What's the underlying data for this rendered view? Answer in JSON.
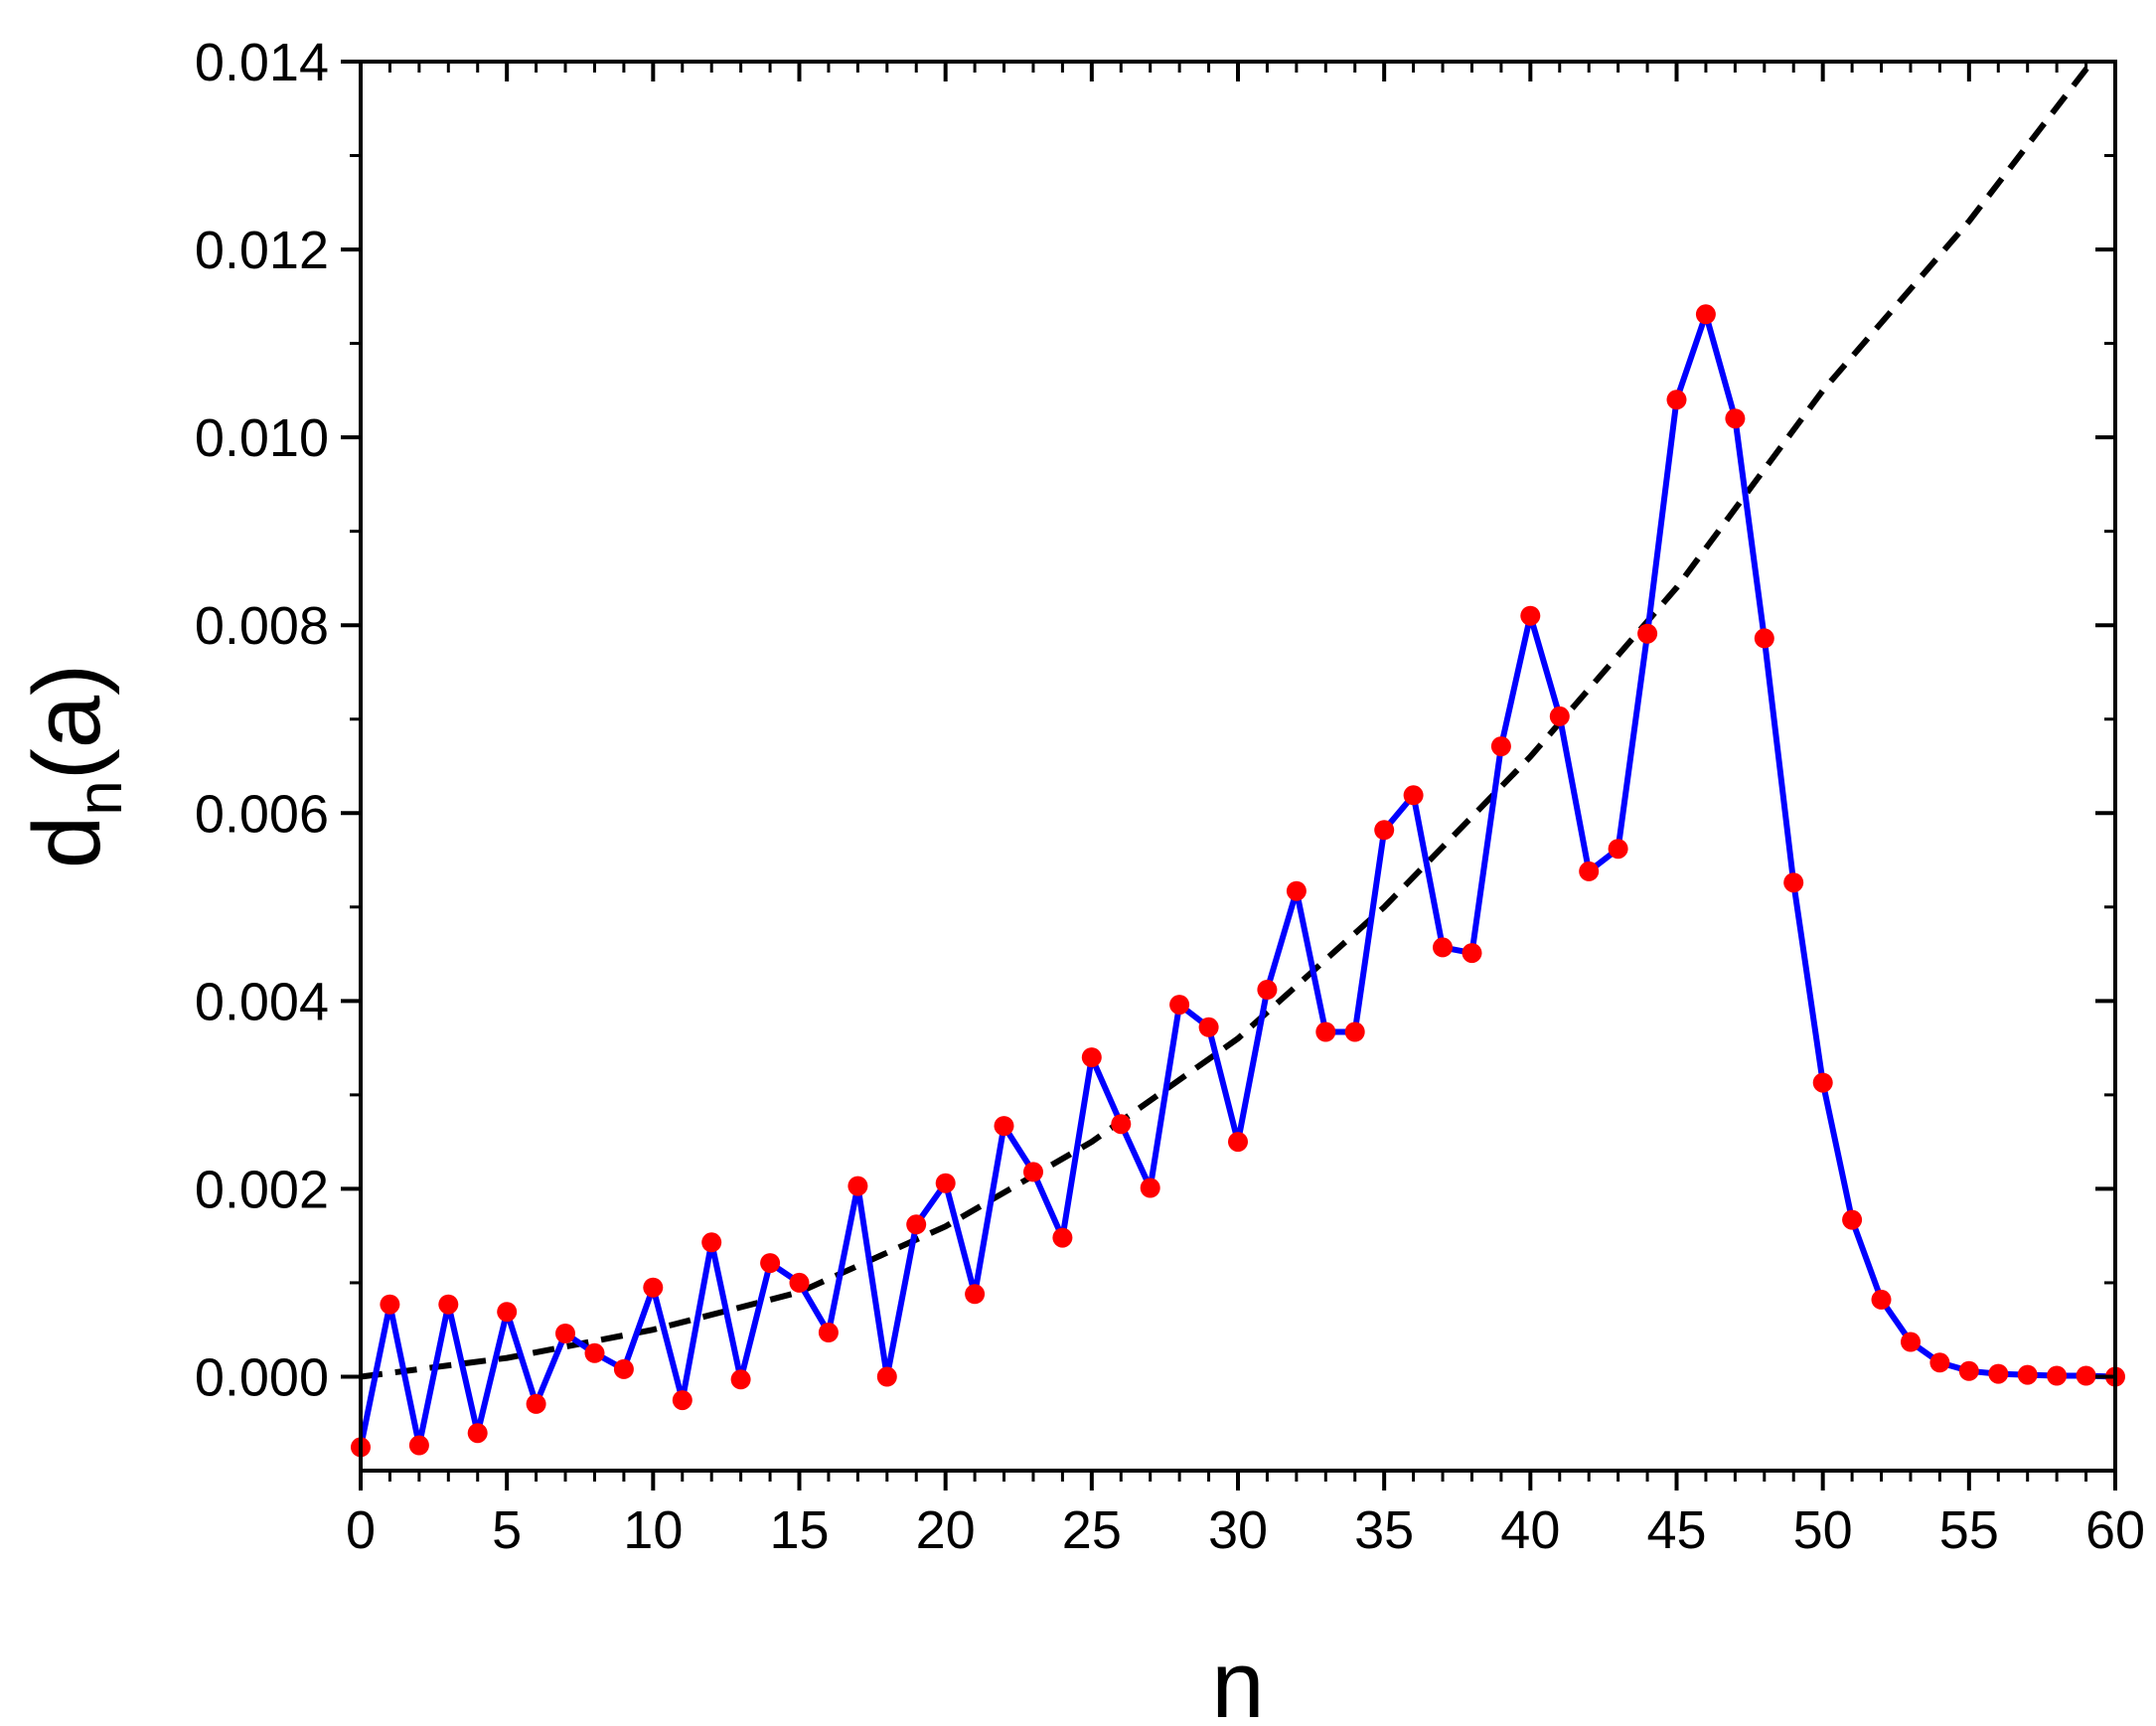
{
  "chart_data": {
    "type": "line",
    "xlabel": "n",
    "ylabel": {
      "base": "d",
      "subscript": "n",
      "suffix": "(a)"
    },
    "xlim": [
      0,
      60
    ],
    "ylim": [
      -0.001,
      0.014
    ],
    "x_ticks": [
      "0",
      "5",
      "10",
      "15",
      "20",
      "25",
      "30",
      "35",
      "40",
      "45",
      "50",
      "55",
      "60"
    ],
    "y_ticks": [
      "0.000",
      "0.002",
      "0.004",
      "0.006",
      "0.008",
      "0.010",
      "0.012",
      "0.014"
    ],
    "grid": false,
    "legend": "none",
    "series": [
      {
        "line_color": "#0000ff",
        "marker_color": "#ff0000",
        "marker": "circle",
        "line_style": "solid",
        "x": [
          0,
          1,
          2,
          3,
          4,
          5,
          6,
          7,
          8,
          9,
          10,
          11,
          12,
          13,
          14,
          15,
          16,
          17,
          18,
          19,
          20,
          21,
          22,
          23,
          24,
          25,
          26,
          27,
          28,
          29,
          30,
          31,
          32,
          33,
          34,
          35,
          36,
          37,
          38,
          39,
          40,
          41,
          42,
          43,
          44,
          45,
          46,
          47,
          48,
          49,
          50,
          51,
          52,
          53,
          54,
          55,
          56,
          57,
          58,
          59,
          60
        ],
        "values": [
          -0.00075,
          0.00077,
          -0.00073,
          0.00077,
          -0.0006,
          0.00069,
          -0.00029,
          0.00046,
          0.00025,
          8e-05,
          0.00095,
          -0.00025,
          0.00143,
          -3e-05,
          0.00121,
          0.001,
          0.00047,
          0.00203,
          0.0,
          0.00162,
          0.00206,
          0.00088,
          0.00267,
          0.00218,
          0.00148,
          0.0034,
          0.00269,
          0.00201,
          0.00396,
          0.00372,
          0.0025,
          0.00412,
          0.00517,
          0.00367,
          0.00367,
          0.00582,
          0.00619,
          0.00457,
          0.00451,
          0.00671,
          0.0081,
          0.00703,
          0.00538,
          0.00562,
          0.00791,
          0.0104,
          0.01131,
          0.0102,
          0.00786,
          0.00526,
          0.00313,
          0.00167,
          0.00082,
          0.00037,
          0.00015,
          6e-05,
          3e-05,
          2e-05,
          1e-05,
          1e-05,
          0.0
        ]
      },
      {
        "line_color": "#000000",
        "line_style": "dashed",
        "x": [
          0,
          5,
          10,
          15,
          20,
          25,
          30,
          35,
          40,
          45,
          50,
          55,
          59.2
        ],
        "values": [
          0.0,
          0.0002,
          0.0005,
          0.0009,
          0.0016,
          0.0025,
          0.0036,
          0.005,
          0.0066,
          0.0084,
          0.0105,
          0.0123,
          0.014
        ]
      }
    ]
  }
}
